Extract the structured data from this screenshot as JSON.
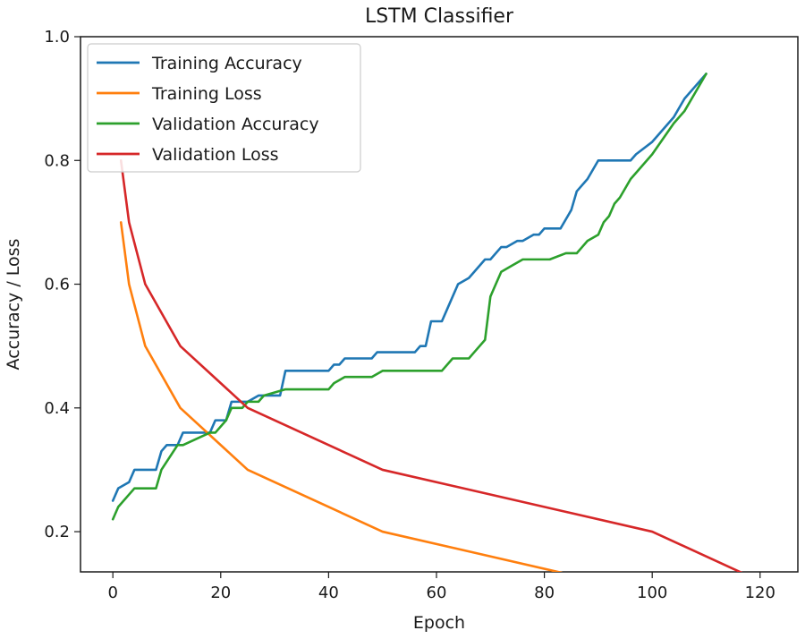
{
  "chart_data": {
    "type": "line",
    "title": "LSTM Classifier",
    "xlabel": "Epoch",
    "ylabel": "Accuracy / Loss",
    "xlim": [
      -6,
      127
    ],
    "ylim": [
      0.135,
      1.0
    ],
    "xticks": [
      0,
      20,
      40,
      60,
      80,
      100,
      120
    ],
    "yticks": [
      0.2,
      0.4,
      0.6,
      0.8,
      1.0
    ],
    "xtick_labels": [
      "0",
      "20",
      "40",
      "60",
      "80",
      "100",
      "120"
    ],
    "ytick_labels": [
      "0.2",
      "0.4",
      "0.6",
      "0.8",
      "1.0"
    ],
    "grid": false,
    "legend_position": "top-left",
    "series": [
      {
        "name": "Training Accuracy",
        "color": "#1f77b4",
        "x": [
          0,
          1,
          3,
          4,
          8,
          9,
          10,
          12,
          13,
          18,
          19,
          21,
          22,
          24,
          25,
          27,
          28,
          31,
          32,
          36,
          37,
          40,
          41,
          42,
          43,
          45,
          46,
          48,
          49,
          56,
          57,
          58,
          59,
          61,
          62,
          64,
          66,
          67,
          69,
          70,
          72,
          73,
          75,
          76,
          78,
          79,
          80,
          83,
          85,
          86,
          88,
          90,
          91,
          96,
          97,
          100,
          104,
          106,
          108,
          110
        ],
        "y": [
          0.25,
          0.27,
          0.28,
          0.3,
          0.3,
          0.33,
          0.34,
          0.34,
          0.36,
          0.36,
          0.38,
          0.38,
          0.41,
          0.41,
          0.41,
          0.42,
          0.42,
          0.42,
          0.46,
          0.46,
          0.46,
          0.46,
          0.47,
          0.47,
          0.48,
          0.48,
          0.48,
          0.48,
          0.49,
          0.49,
          0.5,
          0.5,
          0.54,
          0.54,
          0.56,
          0.6,
          0.61,
          0.62,
          0.64,
          0.64,
          0.66,
          0.66,
          0.67,
          0.67,
          0.68,
          0.68,
          0.69,
          0.69,
          0.72,
          0.75,
          0.77,
          0.8,
          0.8,
          0.8,
          0.81,
          0.83,
          0.87,
          0.9,
          0.92,
          0.94
        ]
      },
      {
        "name": "Training Loss",
        "color": "#ff7f0e",
        "x": [
          1.5,
          3,
          6,
          12.5,
          25,
          50,
          100
        ],
        "y": [
          0.7,
          0.6,
          0.5,
          0.4,
          0.3,
          0.2,
          0.1
        ]
      },
      {
        "name": "Validation Accuracy",
        "color": "#2ca02c",
        "x": [
          0,
          1,
          3,
          4,
          8,
          9,
          12,
          13,
          18,
          19,
          21,
          22,
          24,
          25,
          27,
          28,
          32,
          37,
          40,
          41,
          43,
          47,
          48,
          50,
          57,
          58,
          60,
          61,
          63,
          64,
          66,
          67,
          69,
          70,
          71,
          72,
          74,
          76,
          80,
          81,
          84,
          86,
          87,
          88,
          90,
          91,
          92,
          93,
          94,
          96,
          97,
          100,
          104,
          106,
          108,
          110
        ],
        "y": [
          0.22,
          0.24,
          0.26,
          0.27,
          0.27,
          0.3,
          0.34,
          0.34,
          0.36,
          0.36,
          0.38,
          0.4,
          0.4,
          0.41,
          0.41,
          0.42,
          0.43,
          0.43,
          0.43,
          0.44,
          0.45,
          0.45,
          0.45,
          0.46,
          0.46,
          0.46,
          0.46,
          0.46,
          0.48,
          0.48,
          0.48,
          0.49,
          0.51,
          0.58,
          0.6,
          0.62,
          0.63,
          0.64,
          0.64,
          0.64,
          0.65,
          0.65,
          0.66,
          0.67,
          0.68,
          0.7,
          0.71,
          0.73,
          0.74,
          0.77,
          0.78,
          0.81,
          0.86,
          0.88,
          0.91,
          0.94
        ]
      },
      {
        "name": "Validation Loss",
        "color": "#d62728",
        "x": [
          1.5,
          3,
          6,
          12.5,
          25,
          50,
          100,
          125
        ],
        "y": [
          0.8,
          0.7,
          0.6,
          0.5,
          0.4,
          0.3,
          0.2,
          0.1
        ]
      }
    ]
  }
}
